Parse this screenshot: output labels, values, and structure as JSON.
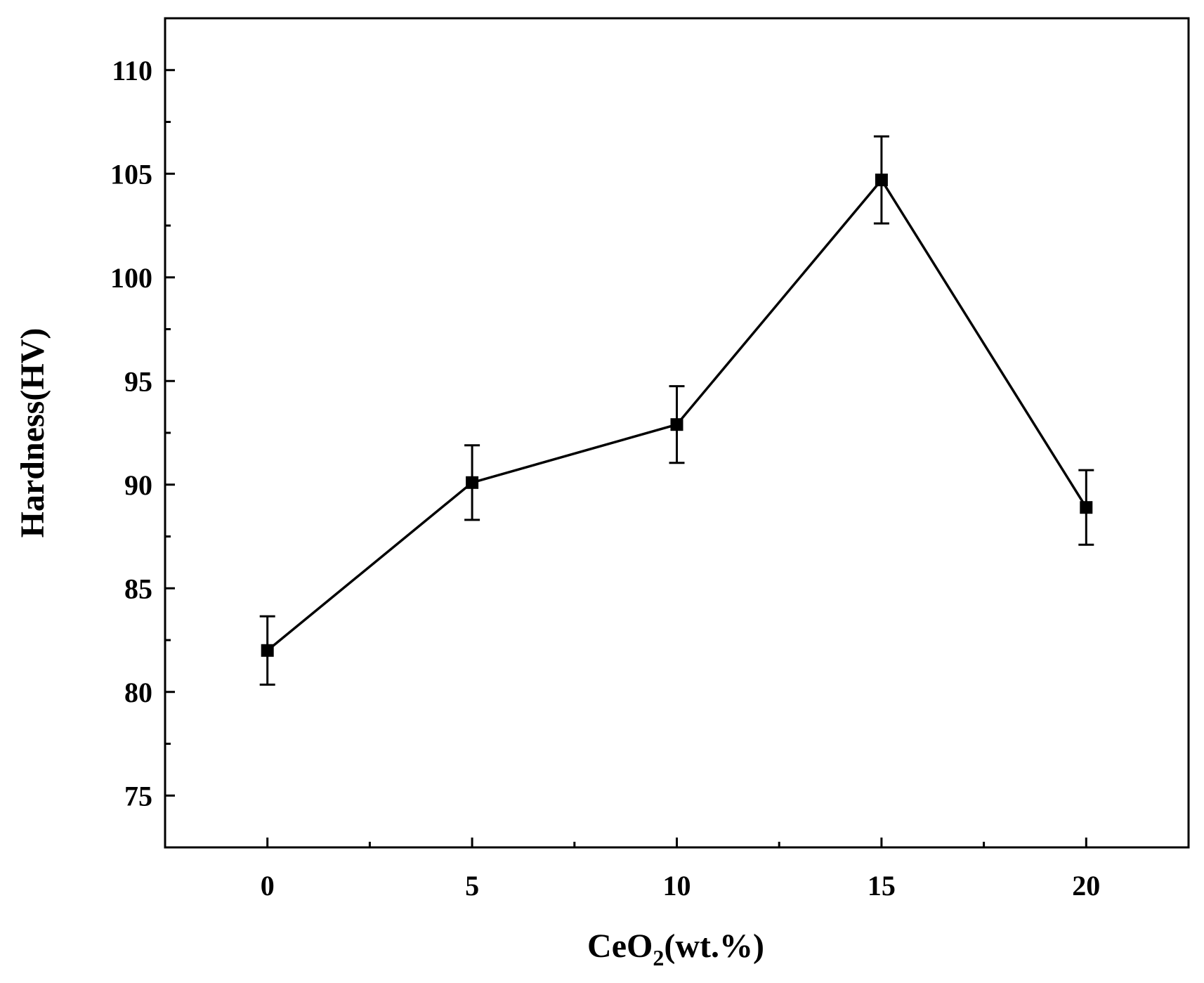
{
  "chart_data": {
    "type": "line",
    "xlabel": {
      "main": "CeO",
      "sub": "2",
      "tail": "(wt.%)"
    },
    "ylabel": "Hardness(HV)",
    "xlim": [
      -2.5,
      22.5
    ],
    "ylim": [
      72.5,
      112.5
    ],
    "xticks": [
      0,
      5,
      10,
      15,
      20
    ],
    "yticks": [
      75,
      80,
      85,
      90,
      95,
      100,
      105,
      110
    ],
    "grid": false,
    "series": [
      {
        "x": [
          0,
          5,
          10,
          15,
          20
        ],
        "y": [
          82.0,
          90.1,
          92.9,
          104.7,
          88.9
        ],
        "yerr": [
          1.65,
          1.8,
          1.85,
          2.1,
          1.8
        ],
        "color": "#000000",
        "marker": "square"
      }
    ]
  }
}
